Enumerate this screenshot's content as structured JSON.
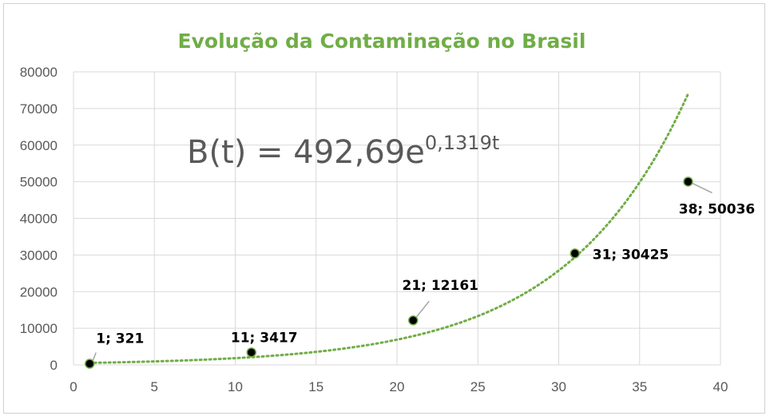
{
  "chart_data": {
    "type": "scatter",
    "title": "Evolução da Contaminação no Brasil",
    "xlabel": "",
    "ylabel": "",
    "xlim": [
      0,
      40
    ],
    "ylim": [
      0,
      80000
    ],
    "x_ticks": [
      "0",
      "5",
      "10",
      "15",
      "20",
      "25",
      "30",
      "35",
      "40"
    ],
    "y_ticks": [
      "0",
      "10000",
      "20000",
      "30000",
      "40000",
      "50000",
      "60000",
      "70000",
      "80000"
    ],
    "grid": true,
    "points": [
      {
        "x": 1,
        "y": 321,
        "label": "1; 321"
      },
      {
        "x": 11,
        "y": 3417,
        "label": "11; 3417"
      },
      {
        "x": 21,
        "y": 12161,
        "label": "21; 12161"
      },
      {
        "x": 31,
        "y": 30425,
        "label": "31; 30425"
      },
      {
        "x": 38,
        "y": 50036,
        "label": "38; 50036"
      }
    ],
    "trendline": {
      "type": "exponential",
      "a": 492.69,
      "b": 0.1319,
      "x_range": [
        1,
        38
      ],
      "equation_main": "B(t) = 492,69e",
      "equation_exponent": "0,1319t",
      "color": "#70ad47"
    },
    "colors": {
      "title": "#70ad47",
      "marker": "#000000",
      "marker_edge": "#70ad47",
      "grid": "#d9d9d9",
      "axis_text": "#595959"
    }
  }
}
